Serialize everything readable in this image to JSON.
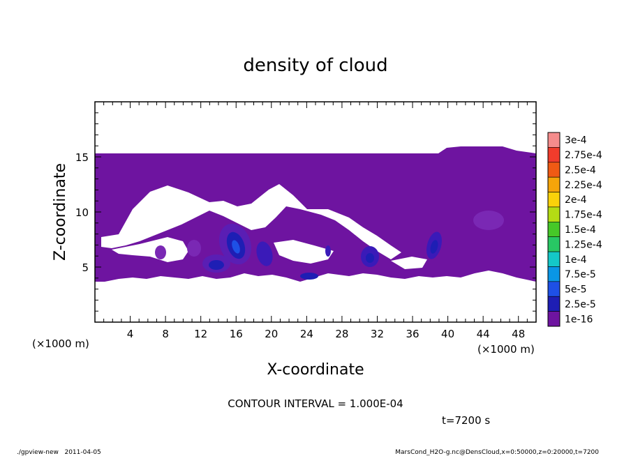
{
  "chart_data": {
    "type": "contour",
    "title": "density of cloud",
    "xlabel": "X-coordinate",
    "ylabel": "Z-coordinate",
    "x_unit": "(×1000 m)",
    "y_unit": "(×1000 m)",
    "xlim": [
      0,
      50
    ],
    "ylim": [
      0,
      20
    ],
    "x_ticks": [
      4,
      8,
      12,
      16,
      20,
      24,
      28,
      32,
      36,
      40,
      44,
      48
    ],
    "y_ticks": [
      5,
      10,
      15
    ],
    "colorbar": {
      "labels": [
        "3e-4",
        "2.75e-4",
        "2.5e-4",
        "2.25e-4",
        "2e-4",
        "1.75e-4",
        "1.5e-4",
        "1.25e-4",
        "1e-4",
        "7.5e-5",
        "5e-5",
        "2.5e-5",
        "1e-16"
      ],
      "colors": [
        "#f58c8c",
        "#f03c2c",
        "#f05a14",
        "#f5a50a",
        "#fad20a",
        "#b4dc14",
        "#46c828",
        "#28c864",
        "#14c8c8",
        "#0a96e6",
        "#1e50e6",
        "#1e1eb4",
        "#6e14a0"
      ]
    },
    "field": {
      "cloud_layer_top_z": 15.3,
      "cloud_layer_bottom_z": 3.6,
      "dense_cells": [
        {
          "x": 14,
          "z": 5.0,
          "peak": "5e-5"
        },
        {
          "x": 16,
          "z": 6.5,
          "peak": "5e-5"
        },
        {
          "x": 19,
          "z": 5.6,
          "peak": "2.5e-5"
        },
        {
          "x": 31,
          "z": 5.8,
          "peak": "2.5e-5"
        },
        {
          "x": 38.5,
          "z": 6.5,
          "peak": "2.5e-5"
        },
        {
          "x": 24.5,
          "z": 4.0,
          "peak": "2.5e-5"
        }
      ]
    },
    "contour_interval": "CONTOUR INTERVAL = 1.000E-04",
    "time": "t=7200 s"
  },
  "footer": {
    "left": "./gpview-new   2011-04-05",
    "right": "MarsCond_H2O-g.nc@DensCloud,x=0:50000,z=0:20000,t=7200"
  }
}
